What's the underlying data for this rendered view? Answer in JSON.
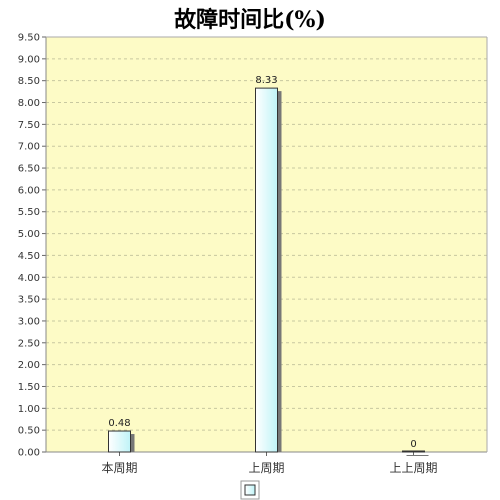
{
  "title": "故障时间比(%)",
  "chart_data": {
    "type": "bar",
    "title": "故障时间比(%)",
    "categories": [
      "本周期",
      "上周期",
      "上上周期"
    ],
    "values": [
      0.48,
      8.33,
      0
    ],
    "value_labels": [
      "0.48",
      "8.33",
      "0"
    ],
    "ylim": [
      0,
      9.5
    ],
    "yticks": [
      "0.00",
      "0.50",
      "1.00",
      "1.50",
      "2.00",
      "2.50",
      "3.00",
      "3.50",
      "4.00",
      "4.50",
      "5.00",
      "5.50",
      "6.00",
      "6.50",
      "7.00",
      "7.50",
      "8.00",
      "8.50",
      "9.00",
      "9.50"
    ],
    "grid": true,
    "legend": "bottom-center"
  },
  "colors": {
    "plot_background": "#fdfbc6",
    "grid": "#c8c8a0",
    "bar_fill_light": "#ffffff",
    "bar_fill_dark": "#bff3f7",
    "bar_border": "#333333",
    "bar_shadow": "#777777"
  }
}
